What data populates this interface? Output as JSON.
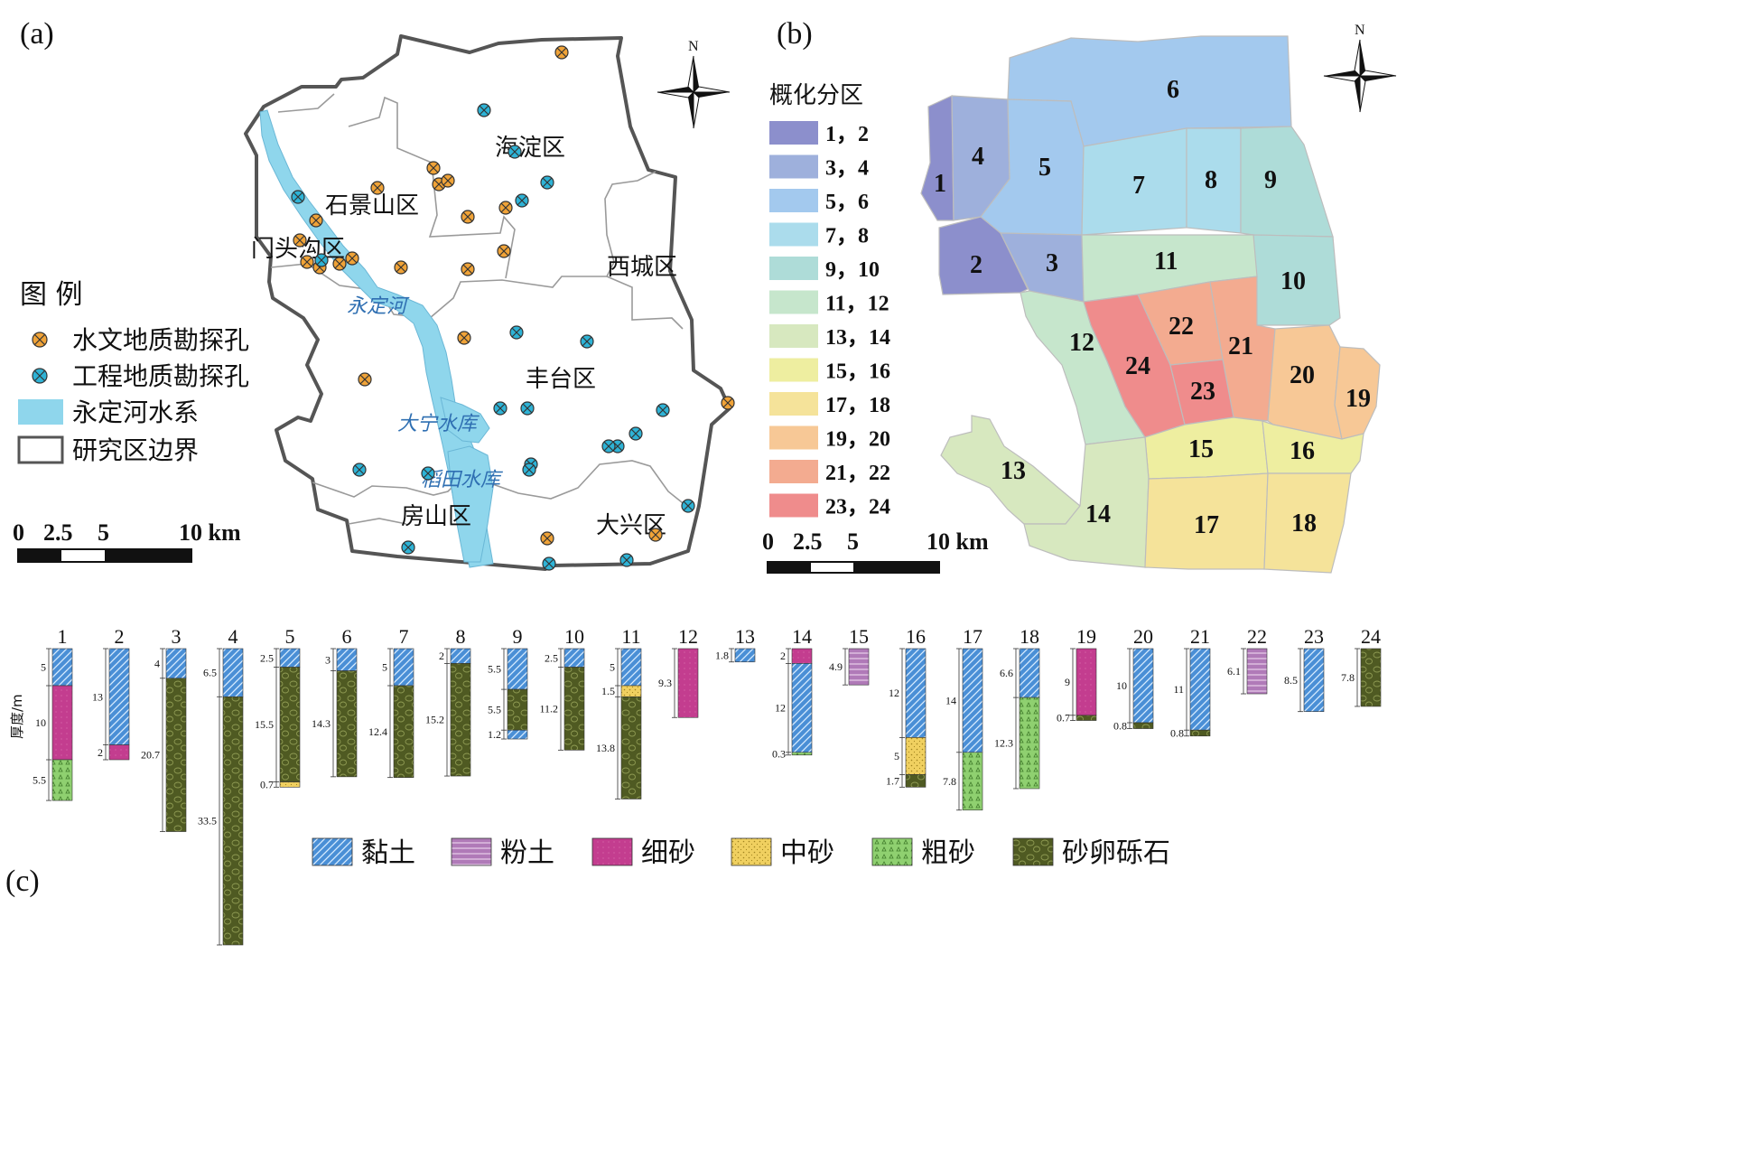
{
  "panel_labels": {
    "a": "(a)",
    "b": "(b)",
    "c": "(c)"
  },
  "map_a": {
    "districts": [
      {
        "name": "海淀区"
      },
      {
        "name": "石景山区"
      },
      {
        "name": "门头沟区"
      },
      {
        "name": "西城区"
      },
      {
        "name": "丰台区"
      },
      {
        "name": "房山区"
      },
      {
        "name": "大兴区"
      }
    ],
    "water_labels": [
      {
        "name": "永定河"
      },
      {
        "name": "大宁水库"
      },
      {
        "name": "稻田水库"
      }
    ],
    "legend": {
      "title": "图 例",
      "items": [
        {
          "label": "水文地质勘探孔",
          "symbol": "hydro-borehole",
          "color": "#f0a338"
        },
        {
          "label": "工程地质勘探孔",
          "symbol": "engineering-borehole",
          "color": "#2eb3d6"
        },
        {
          "label": "永定河水系",
          "symbol": "river",
          "color": "#8fd6ec"
        },
        {
          "label": "研究区边界",
          "symbol": "boundary",
          "color": "#555555"
        }
      ]
    },
    "north": "N",
    "scale_bar": {
      "ticks": [
        "0",
        "2.5",
        "5",
        "10 km"
      ]
    },
    "borehole_counts": {
      "hydrogeological": 25,
      "engineering": 29
    }
  },
  "map_b": {
    "legend_title": "概化分区",
    "legend": [
      {
        "label": "1，2",
        "color": "#8c8fcc"
      },
      {
        "label": "3，4",
        "color": "#9eb0dc"
      },
      {
        "label": "5，6",
        "color": "#a3c9ee"
      },
      {
        "label": "7，8",
        "color": "#abdcec"
      },
      {
        "label": "9，10",
        "color": "#aedcd8"
      },
      {
        "label": "11，12",
        "color": "#c6e6cc"
      },
      {
        "label": "13，14",
        "color": "#d7e8bf"
      },
      {
        "label": "15，16",
        "color": "#eeeea0"
      },
      {
        "label": "17，18",
        "color": "#f5e39a"
      },
      {
        "label": "19，20",
        "color": "#f7c896"
      },
      {
        "label": "21，22",
        "color": "#f3ab90"
      },
      {
        "label": "23，24",
        "color": "#ef8c8c"
      }
    ],
    "zones": [
      "1",
      "2",
      "3",
      "4",
      "5",
      "6",
      "7",
      "8",
      "9",
      "10",
      "11",
      "12",
      "13",
      "14",
      "15",
      "16",
      "17",
      "18",
      "19",
      "20",
      "21",
      "22",
      "23",
      "24"
    ],
    "north": "N",
    "scale_bar": {
      "ticks": [
        "0",
        "2.5",
        "5",
        "10 km"
      ]
    }
  },
  "columns": {
    "axis_label": "厚度/m",
    "lithology_legend": [
      {
        "key": "clay",
        "label": "黏土",
        "color": "#4a8fd6"
      },
      {
        "key": "silt",
        "label": "粉土",
        "color": "#b07ab8"
      },
      {
        "key": "fine_sand",
        "label": "细砂",
        "color": "#c33d8f"
      },
      {
        "key": "medium_sand",
        "label": "中砂",
        "color": "#f0d060"
      },
      {
        "key": "coarse_sand",
        "label": "粗砂",
        "color": "#8fd070"
      },
      {
        "key": "gravel",
        "label": "砂卵砾石",
        "color": "#4f5a22"
      }
    ],
    "data": [
      {
        "zone": "1",
        "layers": [
          {
            "lith": "clay",
            "t": 5,
            "label": "5"
          },
          {
            "lith": "fine_sand",
            "t": 10,
            "label": "10"
          },
          {
            "lith": "coarse_sand",
            "t": 5.5,
            "label": "5.5"
          }
        ]
      },
      {
        "zone": "2",
        "layers": [
          {
            "lith": "clay",
            "t": 13,
            "label": "13"
          },
          {
            "lith": "fine_sand",
            "t": 2,
            "label": "2"
          }
        ]
      },
      {
        "zone": "3",
        "layers": [
          {
            "lith": "clay",
            "t": 4,
            "label": "4"
          },
          {
            "lith": "gravel",
            "t": 20.7,
            "label": "20.7"
          }
        ]
      },
      {
        "zone": "4",
        "layers": [
          {
            "lith": "clay",
            "t": 6.5,
            "label": "6.5"
          },
          {
            "lith": "gravel",
            "t": 33.5,
            "label": "33.5"
          }
        ]
      },
      {
        "zone": "5",
        "layers": [
          {
            "lith": "clay",
            "t": 2.5,
            "label": "2.5"
          },
          {
            "lith": "gravel",
            "t": 15.5,
            "label": "15.5"
          },
          {
            "lith": "medium_sand",
            "t": 0.7,
            "label": "0.7"
          }
        ]
      },
      {
        "zone": "6",
        "layers": [
          {
            "lith": "clay",
            "t": 3,
            "label": "3"
          },
          {
            "lith": "gravel",
            "t": 14.3,
            "label": "14.3"
          }
        ]
      },
      {
        "zone": "7",
        "layers": [
          {
            "lith": "clay",
            "t": 5,
            "label": "5"
          },
          {
            "lith": "gravel",
            "t": 12.4,
            "label": "12.4"
          }
        ]
      },
      {
        "zone": "8",
        "layers": [
          {
            "lith": "clay",
            "t": 2,
            "label": "2"
          },
          {
            "lith": "gravel",
            "t": 15.2,
            "label": "15.2"
          }
        ]
      },
      {
        "zone": "9",
        "layers": [
          {
            "lith": "clay",
            "t": 5.5,
            "label": "5.5"
          },
          {
            "lith": "gravel",
            "t": 5.5,
            "label": "5.5"
          },
          {
            "lith": "clay",
            "t": 1.2,
            "label": "1.2"
          }
        ]
      },
      {
        "zone": "10",
        "layers": [
          {
            "lith": "clay",
            "t": 2.5,
            "label": "2.5"
          },
          {
            "lith": "gravel",
            "t": 11.2,
            "label": "11.2"
          }
        ]
      },
      {
        "zone": "11",
        "layers": [
          {
            "lith": "clay",
            "t": 5,
            "label": "5"
          },
          {
            "lith": "medium_sand",
            "t": 1.5,
            "label": "1.5"
          },
          {
            "lith": "gravel",
            "t": 13.8,
            "label": "13.8"
          }
        ]
      },
      {
        "zone": "12",
        "layers": [
          {
            "lith": "fine_sand",
            "t": 9.3,
            "label": "9.3"
          }
        ]
      },
      {
        "zone": "13",
        "layers": [
          {
            "lith": "clay",
            "t": 1.8,
            "label": "1.8"
          }
        ]
      },
      {
        "zone": "14",
        "layers": [
          {
            "lith": "fine_sand",
            "t": 2,
            "label": "2"
          },
          {
            "lith": "clay",
            "t": 12,
            "label": "12"
          },
          {
            "lith": "coarse_sand",
            "t": 0.3,
            "label": "0.3"
          }
        ]
      },
      {
        "zone": "15",
        "layers": [
          {
            "lith": "silt",
            "t": 4.9,
            "label": "4.9"
          }
        ]
      },
      {
        "zone": "16",
        "layers": [
          {
            "lith": "clay",
            "t": 12,
            "label": "12"
          },
          {
            "lith": "medium_sand",
            "t": 5,
            "label": "5"
          },
          {
            "lith": "gravel",
            "t": 1.7,
            "label": "1.7"
          }
        ]
      },
      {
        "zone": "17",
        "layers": [
          {
            "lith": "clay",
            "t": 14,
            "label": "14"
          },
          {
            "lith": "coarse_sand",
            "t": 7.8,
            "label": "7.8"
          }
        ]
      },
      {
        "zone": "18",
        "layers": [
          {
            "lith": "clay",
            "t": 6.6,
            "label": "6.6"
          },
          {
            "lith": "coarse_sand",
            "t": 12.3,
            "label": "12.3"
          }
        ]
      },
      {
        "zone": "19",
        "layers": [
          {
            "lith": "fine_sand",
            "t": 9,
            "label": "9"
          },
          {
            "lith": "gravel",
            "t": 0.7,
            "label": "0.7"
          }
        ]
      },
      {
        "zone": "20",
        "layers": [
          {
            "lith": "clay",
            "t": 10,
            "label": "10"
          },
          {
            "lith": "gravel",
            "t": 0.8,
            "label": "0.8"
          }
        ]
      },
      {
        "zone": "21",
        "layers": [
          {
            "lith": "clay",
            "t": 11,
            "label": "11"
          },
          {
            "lith": "gravel",
            "t": 0.8,
            "label": "0.8"
          }
        ]
      },
      {
        "zone": "22",
        "layers": [
          {
            "lith": "silt",
            "t": 6.1,
            "label": "6.1"
          }
        ]
      },
      {
        "zone": "23",
        "layers": [
          {
            "lith": "clay",
            "t": 8.5,
            "label": "8.5"
          }
        ]
      },
      {
        "zone": "24",
        "layers": [
          {
            "lith": "gravel",
            "t": 7.8,
            "label": "7.8"
          }
        ]
      }
    ]
  }
}
